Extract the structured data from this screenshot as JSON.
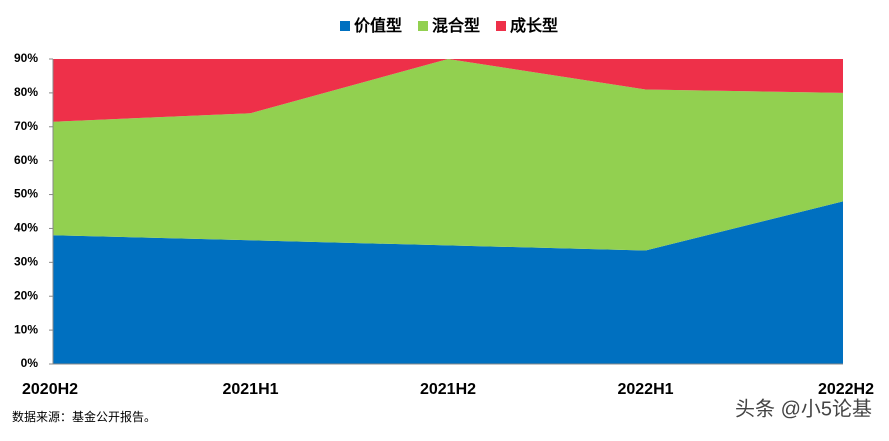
{
  "chart_data": {
    "type": "stacked-area",
    "categories": [
      "2020H2",
      "2021H1",
      "2021H2",
      "2022H1",
      "2022H2"
    ],
    "series": [
      {
        "name": "价值型",
        "color": "#0070c0",
        "values": [
          38,
          36.5,
          35,
          33.5,
          48
        ]
      },
      {
        "name": "混合型",
        "color": "#92d050",
        "values": [
          33.5,
          37.5,
          55,
          47.5,
          32
        ]
      },
      {
        "name": "成长型",
        "color": "#ee3049",
        "values": [
          18.5,
          16,
          0,
          9,
          10
        ]
      }
    ],
    "ylim": [
      0,
      90
    ],
    "yticks": [
      {
        "value": 0,
        "label": "0%"
      },
      {
        "value": 10,
        "label": "10%"
      },
      {
        "value": 20,
        "label": "20%"
      },
      {
        "value": 30,
        "label": "30%"
      },
      {
        "value": 40,
        "label": "40%"
      },
      {
        "value": 50,
        "label": "50%"
      },
      {
        "value": 60,
        "label": "60%"
      },
      {
        "value": 70,
        "label": "70%"
      },
      {
        "value": 80,
        "label": "80%"
      },
      {
        "value": 90,
        "label": "90%"
      }
    ],
    "legend": "top",
    "source": "数据来源：基金公开报告。",
    "watermark": "头条 @小5论基"
  }
}
